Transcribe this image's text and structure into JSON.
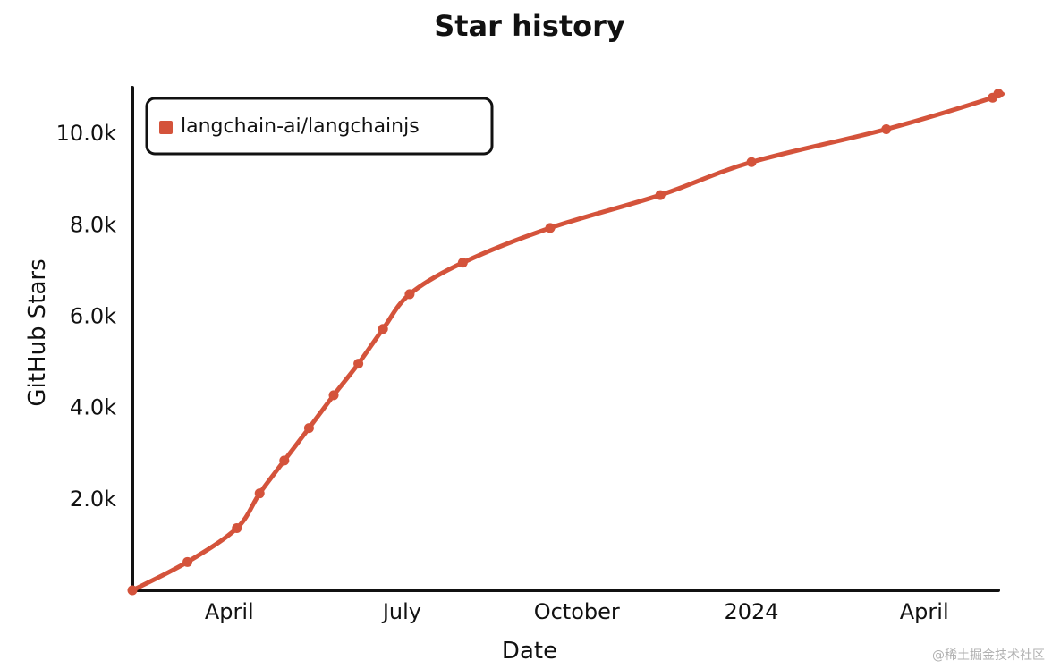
{
  "chart_data": {
    "type": "line",
    "title": "Star history",
    "xlabel": "Date",
    "ylabel": "GitHub Stars",
    "x_tick_labels": [
      "April",
      "July",
      "October",
      "2024",
      "April"
    ],
    "y_tick_labels": [
      "2.0k",
      "4.0k",
      "6.0k",
      "8.0k",
      "10.0k"
    ],
    "y_ticks": [
      2000,
      4000,
      6000,
      8000,
      10000
    ],
    "xlim": [
      "2023-02-09",
      "2024-05-10"
    ],
    "ylim": [
      0,
      11000
    ],
    "grid": false,
    "legend_position": "top-left",
    "series": [
      {
        "name": "langchain-ai/langchainjs",
        "color": "#d4533b",
        "points": [
          {
            "x": "2023-02-09",
            "y": 0
          },
          {
            "x": "2023-03-10",
            "y": 620
          },
          {
            "x": "2023-04-05",
            "y": 1360
          },
          {
            "x": "2023-04-17",
            "y": 2120
          },
          {
            "x": "2023-04-30",
            "y": 2840
          },
          {
            "x": "2023-05-13",
            "y": 3550
          },
          {
            "x": "2023-05-26",
            "y": 4270
          },
          {
            "x": "2023-06-08",
            "y": 4960
          },
          {
            "x": "2023-06-21",
            "y": 5720
          },
          {
            "x": "2023-07-05",
            "y": 6480
          },
          {
            "x": "2023-08-02",
            "y": 7170
          },
          {
            "x": "2023-09-17",
            "y": 7930
          },
          {
            "x": "2023-11-14",
            "y": 8650
          },
          {
            "x": "2024-01-01",
            "y": 9370
          },
          {
            "x": "2024-03-12",
            "y": 10090
          },
          {
            "x": "2024-05-07",
            "y": 10780
          },
          {
            "x": "2024-05-10",
            "y": 10870
          }
        ]
      }
    ]
  },
  "watermark": "@稀土掘金技术社区"
}
